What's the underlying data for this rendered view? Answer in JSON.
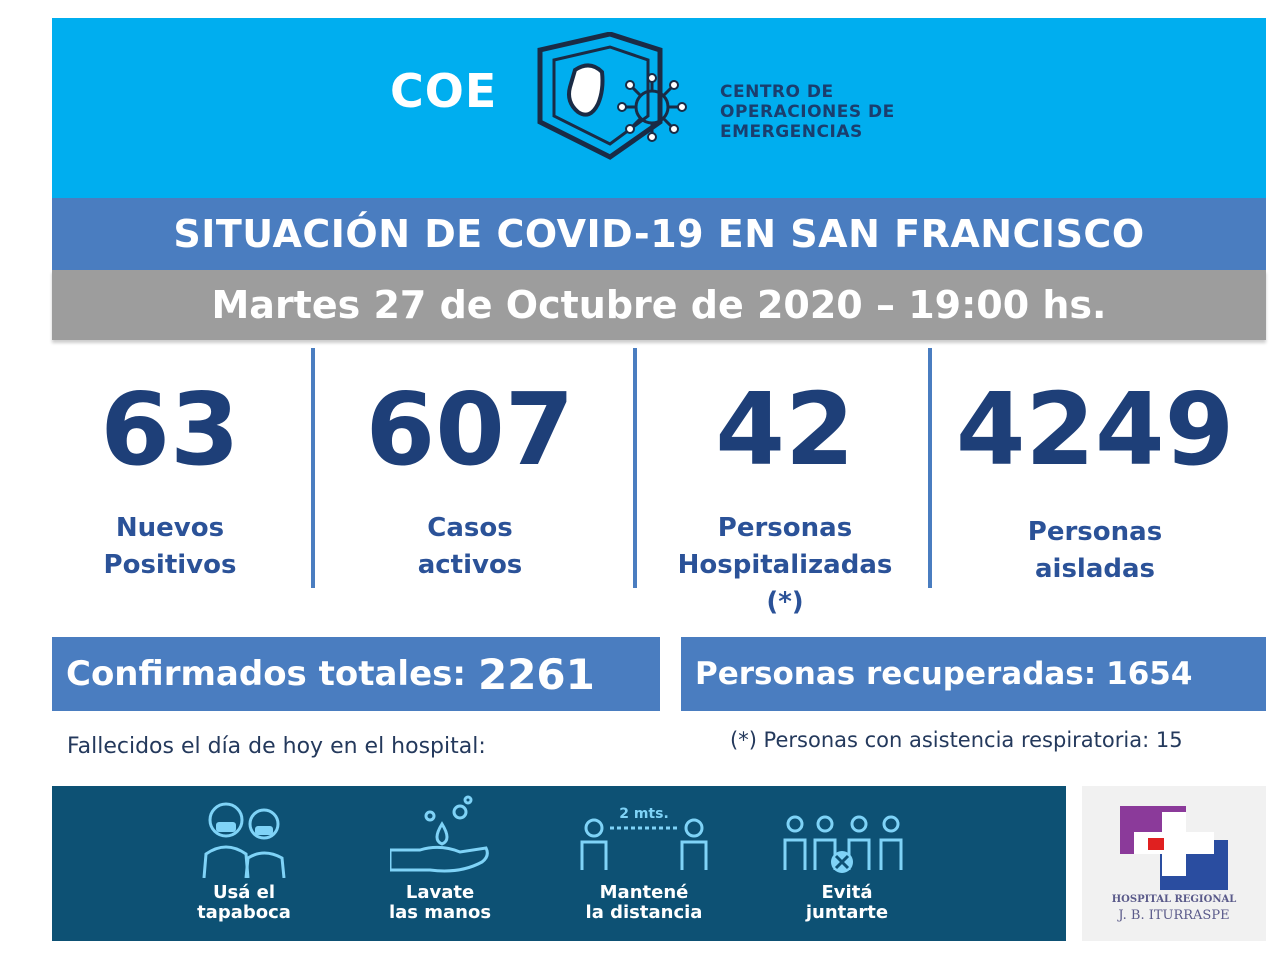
{
  "header": {
    "logo_word": "COE",
    "org_lines": [
      "CENTRO DE",
      "OPERACIONES DE",
      "EMERGENCIAS"
    ]
  },
  "title": "SITUACIÓN DE COVID-19 EN SAN FRANCISCO",
  "date": "Martes 27 de Octubre de 2020 – 19:00 hs.",
  "stats": [
    {
      "value": "63",
      "label_lines": [
        "Nuevos",
        "Positivos"
      ]
    },
    {
      "value": "607",
      "label_lines": [
        "Casos",
        "activos"
      ]
    },
    {
      "value": "42",
      "label_lines": [
        "Personas",
        "Hospitalizadas",
        "(*)"
      ]
    },
    {
      "value": "4249",
      "label_lines": [
        "Personas",
        "aisladas"
      ]
    }
  ],
  "totals": {
    "confirmed_label": "Confirmados totales:",
    "confirmed_value": "2261",
    "recovered_label": "Personas recuperadas:",
    "recovered_value": "1654"
  },
  "notes": {
    "deaths": "Fallecidos el día de hoy en el hospital:",
    "respiratory": "(*) Personas con asistencia respiratoria: 15"
  },
  "tips": [
    {
      "icon": "mask-people-icon",
      "line1": "Usá el",
      "line2": "tapaboca"
    },
    {
      "icon": "wash-hands-icon",
      "line1": "Lavate",
      "line2": "las manos"
    },
    {
      "icon": "distance-icon",
      "line1": "Mantené",
      "line2": "la distancia",
      "distance_label": "2 mts."
    },
    {
      "icon": "no-gathering-icon",
      "line1": "Evitá",
      "line2": "juntarte"
    }
  ],
  "hospital": {
    "line1": "HOSPITAL REGIONAL",
    "line2": "J. B. ITURRASPE"
  },
  "colors": {
    "header_bg": "#00aeef",
    "title_bar": "#4a7dc0",
    "date_bar": "#9d9d9d",
    "stat_number": "#1e3f78",
    "banner_bg": "#0d5174"
  }
}
